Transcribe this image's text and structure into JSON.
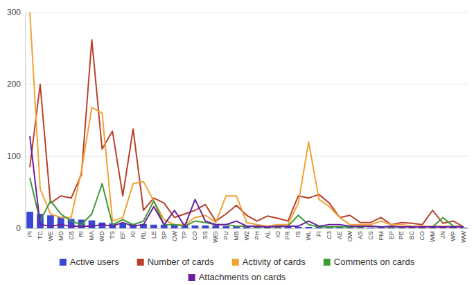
{
  "chart_data": {
    "type": "line",
    "categories": [
      "PI",
      "TC",
      "WE",
      "MD",
      "CB",
      "RI",
      "MA",
      "WD",
      "TS",
      "EF",
      "KI",
      "RL",
      "LE",
      "SP",
      "CW",
      "TP",
      "CO",
      "SS",
      "WEI",
      "PU",
      "MB",
      "W2",
      "PH",
      "AL",
      "IO",
      "PR",
      "IS",
      "WL",
      "FI",
      "C3",
      "AE",
      "OW",
      "AS",
      "CS",
      "PM",
      "EP",
      "PE",
      "BC",
      "CO",
      "WM",
      "JN",
      "WP",
      "WW"
    ],
    "series": [
      {
        "name": "Active users",
        "type": "bar",
        "color": "#3a47d5",
        "values": [
          23,
          20,
          18,
          16,
          13,
          12,
          11,
          8,
          7,
          7,
          6,
          6,
          5,
          5,
          5,
          4,
          4,
          4,
          4,
          3,
          3,
          3,
          3,
          2,
          2,
          2,
          2,
          2,
          2,
          2,
          2,
          2,
          2,
          1,
          1,
          1,
          1,
          1,
          1,
          1,
          1,
          1,
          1
        ]
      },
      {
        "name": "Number of cards",
        "type": "line",
        "color": "#b8402a",
        "values": [
          85,
          200,
          35,
          45,
          42,
          75,
          262,
          110,
          135,
          45,
          138,
          25,
          42,
          35,
          15,
          20,
          25,
          33,
          10,
          20,
          32,
          18,
          10,
          17,
          14,
          10,
          45,
          42,
          47,
          35,
          15,
          18,
          8,
          8,
          15,
          5,
          8,
          7,
          5,
          25,
          7,
          10,
          2
        ]
      },
      {
        "name": "Activity of cards",
        "type": "line",
        "color": "#f0a332",
        "values": [
          300,
          55,
          20,
          15,
          15,
          80,
          168,
          160,
          10,
          15,
          62,
          65,
          38,
          12,
          5,
          5,
          15,
          18,
          8,
          45,
          45,
          8,
          5,
          3,
          5,
          5,
          35,
          120,
          40,
          30,
          15,
          5,
          5,
          5,
          10,
          5,
          5,
          3,
          3,
          3,
          3,
          3,
          2
        ]
      },
      {
        "name": "Comments on cards",
        "type": "line",
        "color": "#3c9a37",
        "values": [
          70,
          10,
          38,
          20,
          10,
          5,
          20,
          62,
          5,
          12,
          5,
          10,
          38,
          5,
          5,
          3,
          10,
          8,
          5,
          5,
          3,
          3,
          2,
          2,
          2,
          3,
          18,
          5,
          2,
          2,
          2,
          2,
          2,
          3,
          2,
          2,
          2,
          2,
          2,
          2,
          15,
          3,
          2
        ]
      },
      {
        "name": "Attachments on cards",
        "type": "line",
        "color": "#6b1f9a",
        "values": [
          128,
          5,
          3,
          5,
          3,
          3,
          3,
          5,
          3,
          8,
          3,
          5,
          30,
          5,
          25,
          3,
          40,
          10,
          5,
          5,
          10,
          3,
          3,
          2,
          3,
          3,
          3,
          10,
          3,
          5,
          5,
          3,
          3,
          3,
          2,
          3,
          2,
          2,
          2,
          2,
          2,
          2,
          2
        ]
      }
    ],
    "ylim": [
      0,
      300
    ],
    "yticks": [
      0,
      100,
      200,
      300
    ],
    "grid": true,
    "legend": "bottom"
  }
}
